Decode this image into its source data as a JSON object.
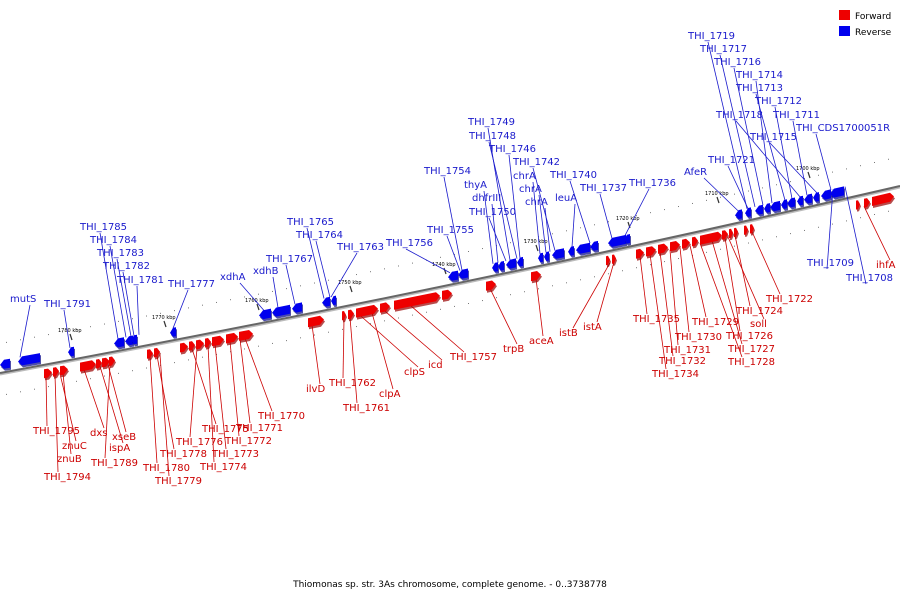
{
  "legend": [
    {
      "name": "Forward",
      "color": "#ee0000"
    },
    {
      "name": "Reverse",
      "color": "#0000ee"
    }
  ],
  "caption": "Thiomonas sp. str. 3As chromosome, complete genome. - 0..3738778",
  "colors": {
    "forward": "#ee0000",
    "reverse": "#0000ee",
    "backbone": "#666666"
  },
  "ticks": [
    "1710 kbp",
    "1720 kbp",
    "1730 kbp",
    "1740 kbp",
    "1750 kbp",
    "1760 kbp",
    "1770 kbp",
    "1780 kbp",
    "1700 kbp"
  ],
  "forward_labels": [
    "THI_1795",
    "THI_1794",
    "znuC",
    "znuB",
    "dxs",
    "ispA",
    "xseB",
    "THI_1789",
    "THI_1780",
    "THI_1778",
    "THI_1779",
    "THI_1775",
    "THI_1776",
    "THI_1774",
    "THI_1773",
    "THI_1772",
    "THI_1771",
    "THI_1770",
    "ilvD",
    "THI_1762",
    "THI_1761",
    "clpS",
    "clpA",
    "icd",
    "THI_1757",
    "trpB",
    "aceA",
    "istB",
    "istA",
    "THI_1735",
    "THI_1734",
    "THI_1732",
    "THI_1731",
    "THI_1730",
    "THI_1729",
    "THI_1728",
    "THI_1727",
    "THI_1726",
    "soll",
    "THI_1724",
    "THI_1722",
    "ihfA"
  ],
  "reverse_labels": [
    "mutS",
    "THI_1791",
    "THI_1785",
    "THI_1784",
    "THI_1783",
    "THI_1782",
    "THI_1781",
    "THI_1777",
    "xdhA",
    "xdhB",
    "THI_1767",
    "THI_1765",
    "THI_1764",
    "THI_1763",
    "THI_1756",
    "THI_1755",
    "THI_1754",
    "thyA",
    "dhfrIII",
    "THI_1750",
    "THI_1749",
    "THI_1748",
    "THI_1746",
    "chrA",
    "chrA",
    "chrA",
    "THI_1742",
    "leuA",
    "THI_1740",
    "THI_1737",
    "THI_1736",
    "AfeR",
    "THI_1721",
    "THI_1719",
    "THI_1717",
    "THI_1716",
    "THI_1714",
    "THI_1713",
    "THI_1712",
    "THI_1718",
    "THI_1711",
    "THI_1715",
    "THI_CDS1700051R",
    "THI_1709",
    "THI_1708"
  ]
}
